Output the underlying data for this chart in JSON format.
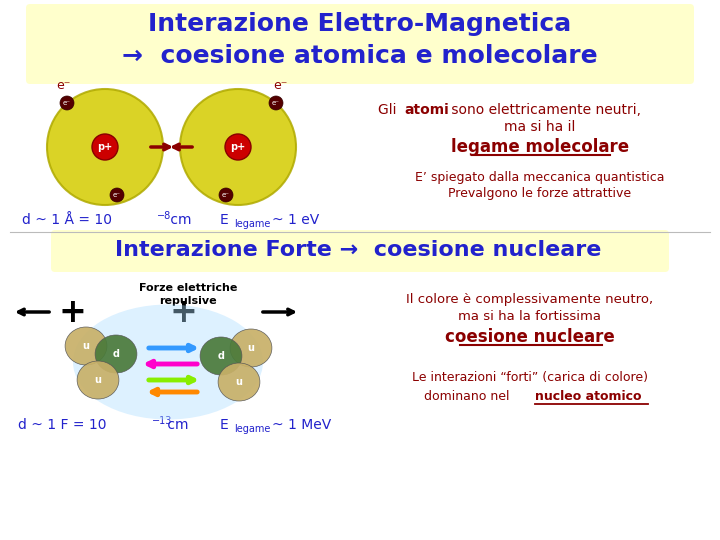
{
  "bg_color": "#ffffff",
  "title_box_color": "#ffffcc",
  "title_box2_color": "#ffffcc",
  "title_text1": "Interazione Elettro-Magnetica",
  "title_text2": "→  coesione atomica e molecolare",
  "title_color": "#2222cc",
  "section2_text": "Interazione Forte →  coesione nucleare",
  "dark_red": "#8b0000",
  "blue_dark": "#2222cc",
  "black": "#000000"
}
